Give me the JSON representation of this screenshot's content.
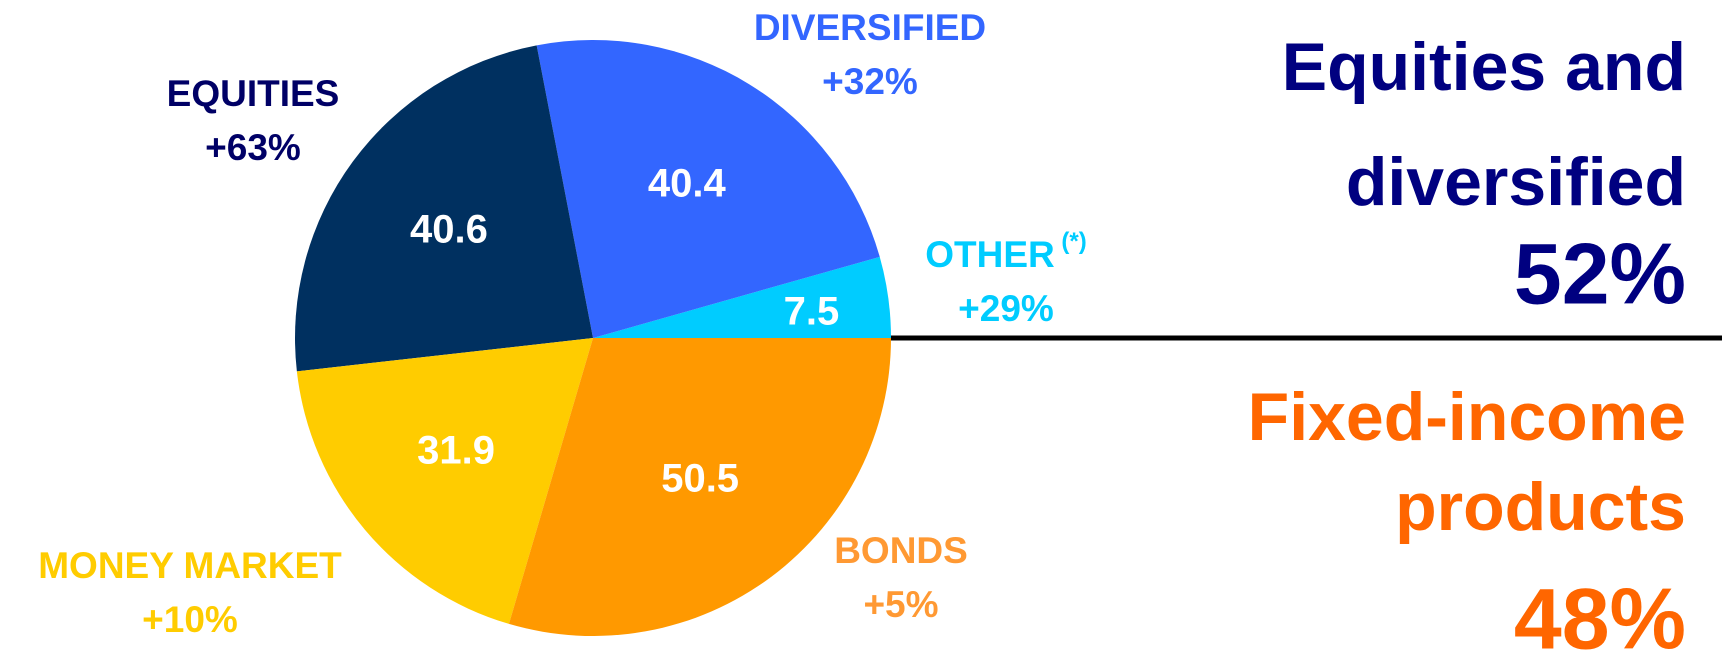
{
  "chart_data": {
    "type": "pie",
    "categories": [
      "OTHER",
      "DIVERSIFIED",
      "EQUITIES",
      "MONEY MARKET",
      "BONDS"
    ],
    "footnote_marks": [
      " (*)",
      null,
      null,
      null,
      null
    ],
    "changes": [
      "+29%",
      "+32%",
      "+63%",
      "+10%",
      "+5%"
    ],
    "values": [
      7.5,
      40.4,
      40.6,
      31.9,
      50.5
    ],
    "colors": [
      "#00ccff",
      "#3366ff",
      "#003060",
      "#ffcc00",
      "#ff9900"
    ],
    "label_colors": [
      "#00ccff",
      "#3366ff",
      "#000066",
      "#ffcc00",
      "#ff9933"
    ],
    "summary": [
      {
        "lines": [
          "Equities and",
          "diversified"
        ],
        "share": "52%",
        "color": "#000080"
      },
      {
        "lines": [
          "Fixed-income",
          "products"
        ],
        "share": "48%",
        "color": "#ff6600"
      }
    ]
  }
}
